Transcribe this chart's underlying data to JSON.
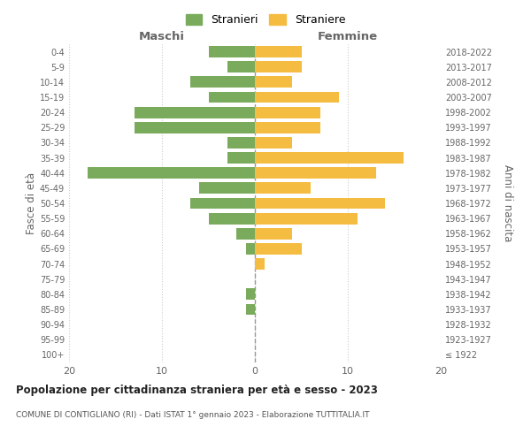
{
  "age_groups": [
    "100+",
    "95-99",
    "90-94",
    "85-89",
    "80-84",
    "75-79",
    "70-74",
    "65-69",
    "60-64",
    "55-59",
    "50-54",
    "45-49",
    "40-44",
    "35-39",
    "30-34",
    "25-29",
    "20-24",
    "15-19",
    "10-14",
    "5-9",
    "0-4"
  ],
  "birth_years": [
    "≤ 1922",
    "1923-1927",
    "1928-1932",
    "1933-1937",
    "1938-1942",
    "1943-1947",
    "1948-1952",
    "1953-1957",
    "1958-1962",
    "1963-1967",
    "1968-1972",
    "1973-1977",
    "1978-1982",
    "1983-1987",
    "1988-1992",
    "1993-1997",
    "1998-2002",
    "2003-2007",
    "2008-2012",
    "2013-2017",
    "2018-2022"
  ],
  "males": [
    0,
    0,
    0,
    1,
    1,
    0,
    0,
    1,
    2,
    5,
    7,
    6,
    18,
    3,
    3,
    13,
    13,
    5,
    7,
    3,
    5
  ],
  "females": [
    0,
    0,
    0,
    0,
    0,
    0,
    1,
    5,
    4,
    11,
    14,
    6,
    13,
    16,
    4,
    7,
    7,
    9,
    4,
    5,
    5
  ],
  "male_color": "#7aab5c",
  "female_color": "#f5bc42",
  "bar_height": 0.75,
  "xlim": [
    -20,
    20
  ],
  "xlabel_left": "Maschi",
  "xlabel_right": "Femmine",
  "ylabel_left": "Fasce di età",
  "ylabel_right": "Anni di nascita",
  "title": "Popolazione per cittadinanza straniera per età e sesso - 2023",
  "subtitle": "COMUNE DI CONTIGLIANO (RI) - Dati ISTAT 1° gennaio 2023 - Elaborazione TUTTITALIA.IT",
  "legend_stranieri": "Stranieri",
  "legend_straniere": "Straniere",
  "xticks": [
    -20,
    -10,
    0,
    10,
    20
  ],
  "xtick_labels": [
    "20",
    "10",
    "0",
    "10",
    "20"
  ],
  "background_color": "#ffffff",
  "grid_color": "#cccccc",
  "center_line_color": "#999999"
}
